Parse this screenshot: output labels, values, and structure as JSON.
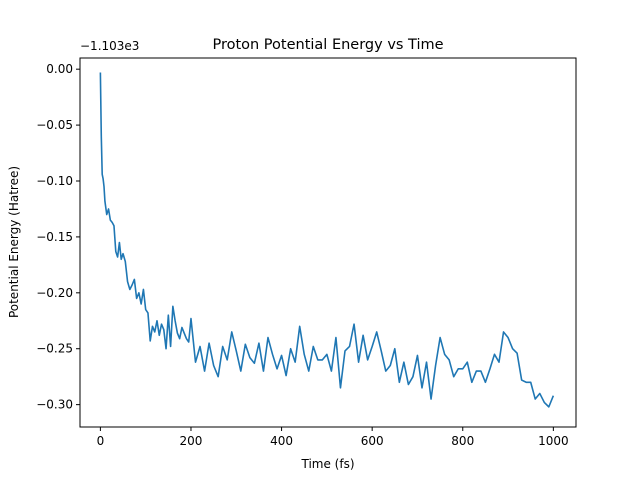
{
  "chart_data": {
    "type": "line",
    "title": "Proton Potential Energy vs Time",
    "xlabel": "Time (fs)",
    "ylabel": "Potential Energy (Hatree)",
    "y_offset_label": "−1.103e3",
    "xlim": [
      -45,
      1050
    ],
    "ylim": [
      -0.32,
      0.01
    ],
    "xticks": [
      0,
      200,
      400,
      600,
      800,
      1000
    ],
    "xtick_labels": [
      "0",
      "200",
      "400",
      "600",
      "800",
      "1000"
    ],
    "yticks": [
      0.0,
      -0.05,
      -0.1,
      -0.15,
      -0.2,
      -0.25,
      -0.3
    ],
    "ytick_labels": [
      "0.00",
      "−0.05",
      "−0.10",
      "−0.15",
      "−0.20",
      "−0.25",
      "−0.30"
    ],
    "grid": false,
    "series": [
      {
        "color": "#1f77b4",
        "x": [
          0,
          2,
          4,
          6,
          8,
          10,
          14,
          18,
          22,
          26,
          30,
          34,
          38,
          42,
          46,
          50,
          55,
          60,
          65,
          70,
          75,
          80,
          85,
          90,
          95,
          100,
          105,
          110,
          115,
          120,
          125,
          130,
          135,
          140,
          145,
          150,
          155,
          160,
          165,
          170,
          175,
          180,
          185,
          190,
          195,
          200,
          210,
          220,
          230,
          240,
          250,
          260,
          270,
          280,
          290,
          300,
          310,
          320,
          330,
          340,
          350,
          360,
          370,
          380,
          390,
          400,
          410,
          420,
          430,
          440,
          450,
          460,
          470,
          480,
          490,
          500,
          510,
          520,
          530,
          540,
          550,
          560,
          570,
          580,
          590,
          600,
          610,
          620,
          630,
          640,
          650,
          660,
          670,
          680,
          690,
          700,
          710,
          720,
          730,
          740,
          750,
          760,
          770,
          780,
          790,
          800,
          810,
          820,
          830,
          840,
          850,
          860,
          870,
          880,
          890,
          900,
          910,
          920,
          930,
          940,
          950,
          960,
          970,
          980,
          990,
          1000
        ],
        "y": [
          -0.003,
          -0.06,
          -0.094,
          -0.098,
          -0.105,
          -0.118,
          -0.13,
          -0.125,
          -0.135,
          -0.137,
          -0.14,
          -0.163,
          -0.168,
          -0.155,
          -0.17,
          -0.165,
          -0.172,
          -0.19,
          -0.197,
          -0.193,
          -0.188,
          -0.205,
          -0.2,
          -0.21,
          -0.197,
          -0.215,
          -0.218,
          -0.243,
          -0.23,
          -0.235,
          -0.225,
          -0.238,
          -0.228,
          -0.233,
          -0.25,
          -0.22,
          -0.248,
          -0.212,
          -0.225,
          -0.236,
          -0.241,
          -0.231,
          -0.236,
          -0.241,
          -0.244,
          -0.223,
          -0.262,
          -0.248,
          -0.27,
          -0.245,
          -0.265,
          -0.275,
          -0.248,
          -0.26,
          -0.235,
          -0.252,
          -0.27,
          -0.246,
          -0.258,
          -0.263,
          -0.245,
          -0.27,
          -0.24,
          -0.255,
          -0.268,
          -0.256,
          -0.274,
          -0.25,
          -0.262,
          -0.23,
          -0.255,
          -0.27,
          -0.248,
          -0.26,
          -0.26,
          -0.255,
          -0.27,
          -0.24,
          -0.285,
          -0.252,
          -0.248,
          -0.228,
          -0.262,
          -0.238,
          -0.26,
          -0.248,
          -0.235,
          -0.252,
          -0.27,
          -0.265,
          -0.25,
          -0.28,
          -0.262,
          -0.282,
          -0.275,
          -0.256,
          -0.285,
          -0.262,
          -0.295,
          -0.265,
          -0.24,
          -0.255,
          -0.26,
          -0.275,
          -0.268,
          -0.268,
          -0.262,
          -0.28,
          -0.27,
          -0.27,
          -0.28,
          -0.268,
          -0.255,
          -0.262,
          -0.235,
          -0.24,
          -0.25,
          -0.254,
          -0.278,
          -0.28,
          -0.28,
          -0.295,
          -0.29,
          -0.298,
          -0.302,
          -0.292
        ]
      }
    ]
  }
}
